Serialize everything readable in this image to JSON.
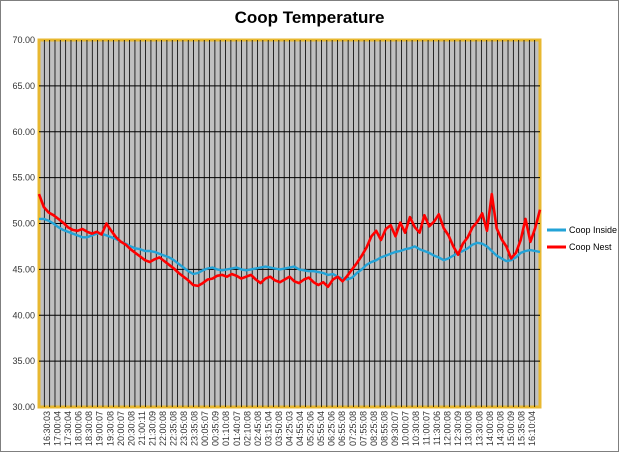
{
  "chart_data": {
    "type": "line",
    "title": "Coop Temperature",
    "xlabel": "",
    "ylabel": "",
    "ylim": [
      30,
      70
    ],
    "yticks": [
      "70.00",
      "65.00",
      "60.00",
      "55.00",
      "50.00",
      "45.00",
      "40.00",
      "35.00",
      "30.00"
    ],
    "grid": true,
    "legend_position": "right",
    "xtick_labels": [
      "16:30:03",
      "17:00:04",
      "17:30:04",
      "18:00:06",
      "18:30:08",
      "19:00:07",
      "19:30:08",
      "20:00:07",
      "20:30:08",
      "21:00:11",
      "21:30:09",
      "22:00:08",
      "22:35:08",
      "23:05:08",
      "23:35:08",
      "00:05:07",
      "00:35:09",
      "01:10:08",
      "01:40:07",
      "02:10:08",
      "02:45:08",
      "03:15:04",
      "03:50:08",
      "04:25:03",
      "04:55:04",
      "05:25:06",
      "05:55:04",
      "06:25:06",
      "06:55:08",
      "07:25:08",
      "07:55:08",
      "08:25:08",
      "08:55:08",
      "09:30:07",
      "10:00:07",
      "10:30:08",
      "11:00:07",
      "11:30:06",
      "12:00:08",
      "12:30:09",
      "13:00:08",
      "13:30:08",
      "14:00:08",
      "14:30:08",
      "15:00:09",
      "15:35:08",
      "16:10:04"
    ],
    "series": [
      {
        "name": "Coop Inside",
        "color": "#23a3d7",
        "values": [
          50.5,
          50.5,
          50.3,
          50.0,
          49.6,
          49.3,
          49.1,
          48.9,
          48.7,
          48.5,
          48.5,
          48.7,
          48.9,
          48.9,
          48.7,
          48.5,
          48.3,
          48.0,
          47.8,
          47.5,
          47.3,
          47.2,
          47.0,
          47.0,
          46.9,
          46.7,
          46.5,
          46.3,
          46.0,
          45.6,
          45.2,
          44.8,
          44.5,
          44.6,
          44.9,
          45.1,
          45.2,
          45.0,
          44.9,
          45.0,
          45.1,
          45.2,
          45.0,
          44.9,
          45.0,
          45.1,
          45.2,
          45.3,
          45.2,
          45.1,
          45.0,
          45.1,
          45.2,
          45.3,
          45.0,
          44.9,
          44.8,
          44.8,
          44.7,
          44.6,
          44.4,
          44.5,
          44.2,
          44.0,
          43.9,
          44.1,
          44.6,
          45.0,
          45.5,
          45.8,
          46.0,
          46.3,
          46.5,
          46.7,
          46.9,
          47.0,
          47.2,
          47.3,
          47.5,
          47.2,
          47.0,
          46.8,
          46.5,
          46.3,
          46.0,
          46.2,
          46.5,
          46.8,
          47.0,
          47.3,
          47.7,
          47.9,
          47.8,
          47.5,
          47.0,
          46.5,
          46.2,
          45.9,
          46.0,
          46.3,
          46.8,
          47.0,
          47.1,
          47.0,
          46.9
        ]
      },
      {
        "name": "Coop Nest",
        "color": "#ff0000",
        "values": [
          53.2,
          51.8,
          51.2,
          50.9,
          50.5,
          50.1,
          49.6,
          49.3,
          49.2,
          49.4,
          49.1,
          48.9,
          49.1,
          48.8,
          50.0,
          49.2,
          48.5,
          48.0,
          47.7,
          47.2,
          46.8,
          46.4,
          46.0,
          45.8,
          46.1,
          46.3,
          45.9,
          45.5,
          45.1,
          44.6,
          44.2,
          43.8,
          43.3,
          43.2,
          43.5,
          43.9,
          44.0,
          44.3,
          44.4,
          44.2,
          44.5,
          44.3,
          44.0,
          44.2,
          44.4,
          43.9,
          43.5,
          44.0,
          44.2,
          43.8,
          43.6,
          43.9,
          44.2,
          43.7,
          43.5,
          43.9,
          44.1,
          43.6,
          43.3,
          43.6,
          43.1,
          43.9,
          44.2,
          43.7,
          44.3,
          45.0,
          45.7,
          46.5,
          47.4,
          48.6,
          49.2,
          48.2,
          49.4,
          49.8,
          48.6,
          50.1,
          49.0,
          50.7,
          49.6,
          49.0,
          50.9,
          49.7,
          50.2,
          51.0,
          49.5,
          48.7,
          47.5,
          46.6,
          47.8,
          48.5,
          49.6,
          50.2,
          51.1,
          49.2,
          53.2,
          49.5,
          48.3,
          47.5,
          46.2,
          46.8,
          48.2,
          50.5,
          48.0,
          49.5,
          51.5
        ]
      }
    ]
  }
}
